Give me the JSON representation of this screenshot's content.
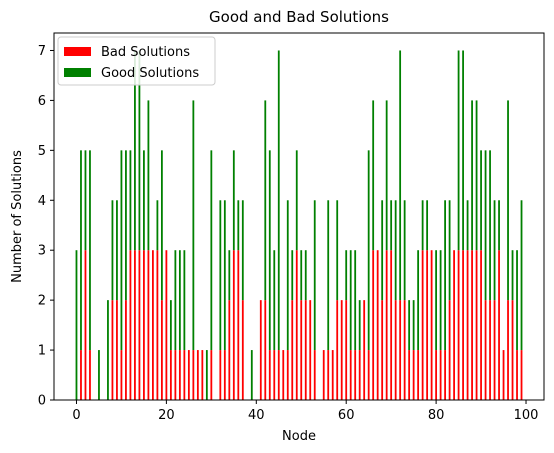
{
  "chart_data": {
    "type": "bar",
    "title": "Good and Bad Solutions",
    "xlabel": "Node",
    "ylabel": "Number of Solutions",
    "xlim": [
      -5,
      104
    ],
    "ylim": [
      0,
      7.35
    ],
    "xticks": [
      0,
      20,
      40,
      60,
      80,
      100
    ],
    "yticks": [
      0,
      1,
      2,
      3,
      4,
      5,
      6,
      7
    ],
    "legend_position": "top-left",
    "grid": false,
    "stacked": true,
    "nodes": [
      0,
      1,
      2,
      3,
      4,
      5,
      6,
      7,
      8,
      9,
      10,
      11,
      12,
      13,
      14,
      15,
      16,
      17,
      18,
      19,
      20,
      21,
      22,
      23,
      24,
      25,
      26,
      27,
      28,
      29,
      30,
      31,
      32,
      33,
      34,
      35,
      36,
      37,
      38,
      39,
      40,
      41,
      42,
      43,
      44,
      45,
      46,
      47,
      48,
      49,
      50,
      51,
      52,
      53,
      54,
      55,
      56,
      57,
      58,
      59,
      60,
      61,
      62,
      63,
      64,
      65,
      66,
      67,
      68,
      69,
      70,
      71,
      72,
      73,
      74,
      75,
      76,
      77,
      78,
      79,
      80,
      81,
      82,
      83,
      84,
      85,
      86,
      87,
      88,
      89,
      90,
      91,
      92,
      93,
      94,
      95,
      96,
      97,
      98,
      99
    ],
    "series": [
      {
        "name": "Bad Solutions",
        "color": "#ff0000",
        "values": [
          0,
          1,
          3,
          1,
          0,
          0,
          0,
          0,
          2,
          2,
          1,
          2,
          3,
          3,
          3,
          3,
          3,
          3,
          3,
          2,
          3,
          1,
          1,
          1,
          1,
          1,
          1,
          1,
          1,
          0,
          1,
          0,
          1,
          1,
          2,
          3,
          3,
          2,
          0,
          0,
          0,
          2,
          2,
          1,
          1,
          1,
          1,
          1,
          2,
          3,
          2,
          2,
          2,
          1,
          0,
          1,
          1,
          1,
          2,
          2,
          2,
          1,
          1,
          1,
          2,
          1,
          3,
          3,
          2,
          3,
          3,
          2,
          2,
          2,
          1,
          1,
          1,
          3,
          3,
          3,
          1,
          1,
          1,
          2,
          3,
          3,
          3,
          3,
          3,
          3,
          3,
          2,
          2,
          2,
          3,
          1,
          2,
          2,
          1,
          1
        ],
        "totals_hint": "stacked base"
      },
      {
        "name": "Good Solutions",
        "color": "#008000",
        "values": [
          3,
          4,
          2,
          4,
          0,
          1,
          0,
          2,
          2,
          2,
          4,
          3,
          2,
          4,
          4,
          2,
          3,
          0,
          1,
          3,
          0,
          1,
          2,
          2,
          2,
          0,
          5,
          0,
          0,
          1,
          4,
          0,
          3,
          3,
          1,
          2,
          1,
          2,
          0,
          1,
          0,
          0,
          4,
          4,
          2,
          6,
          0,
          3,
          1,
          2,
          1,
          1,
          0,
          3,
          0,
          0,
          3,
          0,
          2,
          0,
          1,
          2,
          2,
          1,
          0,
          4,
          3,
          0,
          2,
          3,
          1,
          2,
          5,
          2,
          1,
          1,
          2,
          1,
          1,
          0,
          2,
          2,
          3,
          2,
          0,
          4,
          4,
          1,
          3,
          3,
          2,
          3,
          3,
          2,
          1,
          0,
          4,
          1,
          2,
          3
        ]
      }
    ]
  }
}
